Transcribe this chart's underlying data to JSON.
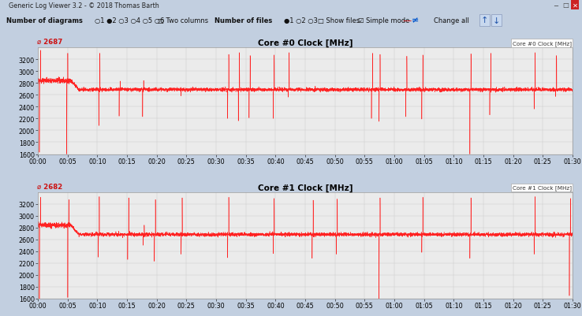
{
  "title_bar": "Generic Log Viewer 3.2 - © 2018 Thomas Barth",
  "chart1_title": "Core #0 Clock [MHz]",
  "chart2_title": "Core #1 Clock [MHz]",
  "chart1_value": "2687",
  "chart2_value": "2682",
  "ylim": [
    1600,
    3400
  ],
  "yticks": [
    1600,
    1800,
    2000,
    2200,
    2400,
    2600,
    2800,
    3000,
    3200
  ],
  "xtick_labels": [
    "00:00",
    "00:05",
    "00:10",
    "00:15",
    "00:20",
    "00:25",
    "00:30",
    "00:35",
    "00:40",
    "00:45",
    "00:50",
    "00:55",
    "01:00",
    "01:05",
    "01:10",
    "01:15",
    "01:20",
    "01:25",
    "01:30"
  ],
  "line_color": "#ff2222",
  "plot_bg": "#ebebeb",
  "panel_bg": "#d6e0ed",
  "fig_bg": "#c2cfe0",
  "titlebar_bg": "#b0c4d8",
  "toolbar_bg": "#dce8f5",
  "n_points": 5580,
  "baseline1": 2687,
  "baseline2": 2682,
  "down_spikes_1_pct": [
    0.003,
    0.054,
    0.114,
    0.152,
    0.196,
    0.268,
    0.355,
    0.375,
    0.395,
    0.44,
    0.468,
    0.624,
    0.638,
    0.688,
    0.718,
    0.808,
    0.845,
    0.928,
    0.968
  ],
  "down_spikes_1_depth": [
    1630,
    1600,
    2080,
    2240,
    2230,
    2580,
    2200,
    2160,
    2210,
    2200,
    2560,
    2200,
    2150,
    2230,
    2190,
    1600,
    2260,
    2360,
    2570
  ],
  "up_spikes_1_pct": [
    0.005,
    0.056,
    0.116,
    0.154,
    0.198,
    0.154,
    0.357,
    0.377,
    0.397,
    0.442,
    0.47,
    0.626,
    0.64,
    0.69,
    0.72,
    0.81,
    0.847,
    0.93,
    0.97
  ],
  "up_spikes_1_val": [
    3350,
    3300,
    3300,
    3280,
    2840,
    2830,
    3280,
    3310,
    3260,
    3270,
    3310,
    3300,
    3280,
    3250,
    3270,
    3290,
    3300,
    3310,
    3260
  ],
  "down_spikes_2_pct": [
    0.003,
    0.056,
    0.113,
    0.168,
    0.197,
    0.218,
    0.268,
    0.355,
    0.44,
    0.513,
    0.558,
    0.638,
    0.718,
    0.808,
    0.928,
    0.994
  ],
  "down_spikes_2_depth": [
    1530,
    1620,
    2300,
    2260,
    2500,
    2230,
    2350,
    2290,
    2360,
    2280,
    2350,
    1600,
    2380,
    2280,
    2350,
    1650
  ],
  "up_spikes_2_pct": [
    0.005,
    0.058,
    0.115,
    0.17,
    0.199,
    0.22,
    0.27,
    0.357,
    0.442,
    0.515,
    0.56,
    0.64,
    0.72,
    0.81,
    0.93,
    0.996
  ],
  "up_spikes_2_val": [
    3310,
    3270,
    3320,
    3300,
    2840,
    3270,
    3300,
    3310,
    3290,
    3260,
    3280,
    3300,
    3310,
    3300,
    3320,
    3290
  ]
}
